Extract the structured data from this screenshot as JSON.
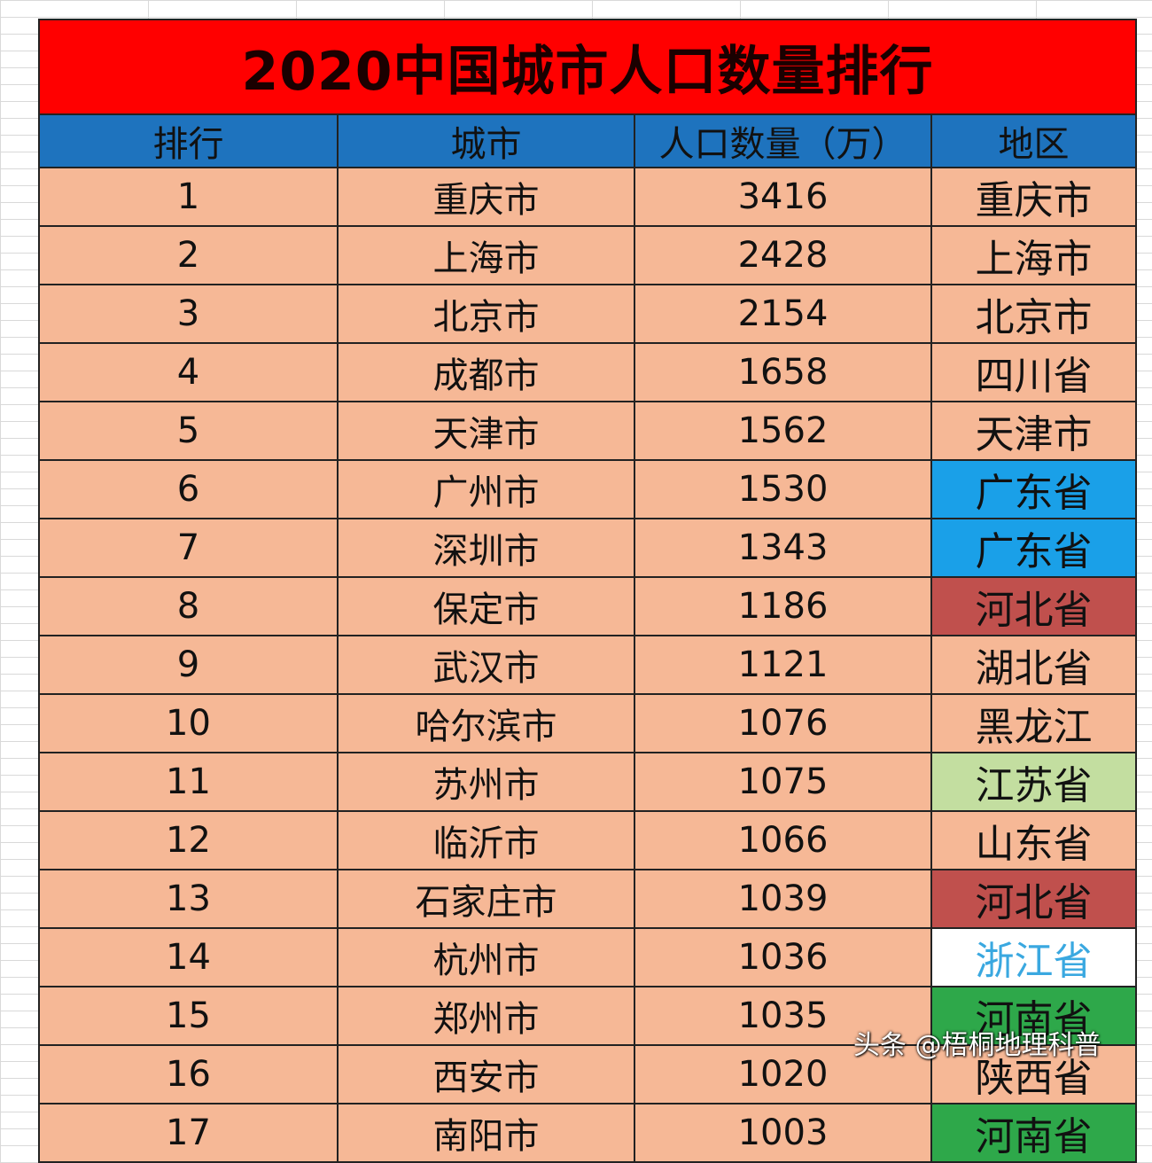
{
  "title": "2020中国城市人口数量排行",
  "columns": [
    "排行",
    "城市",
    "人口数量（万）",
    "地区"
  ],
  "rows": [
    {
      "rank": "1",
      "city": "重庆市",
      "population": "3416",
      "region": "重庆市",
      "region_bg": "#f6b896",
      "region_color": "#111111"
    },
    {
      "rank": "2",
      "city": "上海市",
      "population": "2428",
      "region": "上海市",
      "region_bg": "#f6b896",
      "region_color": "#111111"
    },
    {
      "rank": "3",
      "city": "北京市",
      "population": "2154",
      "region": "北京市",
      "region_bg": "#f6b896",
      "region_color": "#111111"
    },
    {
      "rank": "4",
      "city": "成都市",
      "population": "1658",
      "region": "四川省",
      "region_bg": "#f6b896",
      "region_color": "#111111"
    },
    {
      "rank": "5",
      "city": "天津市",
      "population": "1562",
      "region": "天津市",
      "region_bg": "#f6b896",
      "region_color": "#111111"
    },
    {
      "rank": "6",
      "city": "广州市",
      "population": "1530",
      "region": "广东省",
      "region_bg": "#1aa0e8",
      "region_color": "#111111"
    },
    {
      "rank": "7",
      "city": "深圳市",
      "population": "1343",
      "region": "广东省",
      "region_bg": "#1aa0e8",
      "region_color": "#111111"
    },
    {
      "rank": "8",
      "city": "保定市",
      "population": "1186",
      "region": "河北省",
      "region_bg": "#c0504d",
      "region_color": "#111111"
    },
    {
      "rank": "9",
      "city": "武汉市",
      "population": "1121",
      "region": "湖北省",
      "region_bg": "#f6b896",
      "region_color": "#111111"
    },
    {
      "rank": "10",
      "city": "哈尔滨市",
      "population": "1076",
      "region": "黑龙江",
      "region_bg": "#f6b896",
      "region_color": "#111111"
    },
    {
      "rank": "11",
      "city": "苏州市",
      "population": "1075",
      "region": "江苏省",
      "region_bg": "#c3dea0",
      "region_color": "#111111"
    },
    {
      "rank": "12",
      "city": "临沂市",
      "population": "1066",
      "region": "山东省",
      "region_bg": "#f6b896",
      "region_color": "#111111"
    },
    {
      "rank": "13",
      "city": "石家庄市",
      "population": "1039",
      "region": "河北省",
      "region_bg": "#c0504d",
      "region_color": "#111111"
    },
    {
      "rank": "14",
      "city": "杭州市",
      "population": "1036",
      "region": "浙江省",
      "region_bg": "#ffffff",
      "region_color": "#3aa8e0"
    },
    {
      "rank": "15",
      "city": "郑州市",
      "population": "1035",
      "region": "河南省",
      "region_bg": "#2ea84a",
      "region_color": "#111111"
    },
    {
      "rank": "16",
      "city": "西安市",
      "population": "1020",
      "region": "陕西省",
      "region_bg": "#f6b896",
      "region_color": "#111111"
    },
    {
      "rank": "17",
      "city": "南阳市",
      "population": "1003",
      "region": "河南省",
      "region_bg": "#2ea84a",
      "region_color": "#111111"
    }
  ],
  "watermark": "头条 @梧桐地理科普",
  "colors": {
    "title_bg": "#ff0000",
    "header_bg": "#1e73be",
    "row_bg": "#f6b896"
  }
}
